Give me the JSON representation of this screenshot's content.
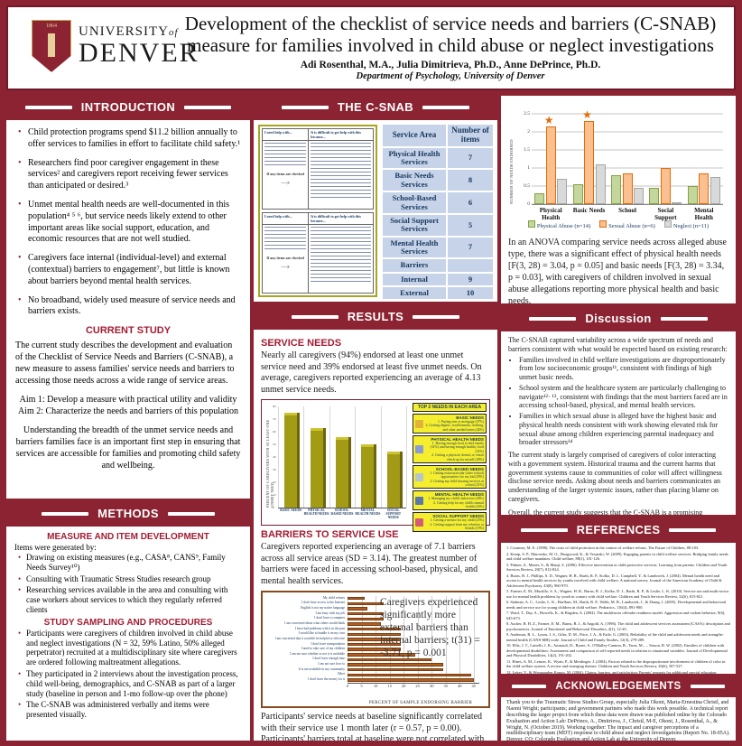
{
  "header": {
    "university_line": "UNIVERSITY",
    "university_of": "of",
    "university_name": "DENVER",
    "shield_year": "1864",
    "title_line1": "Development of the checklist of service needs and barriers (C-SNAB)",
    "title_line2": "measure for families involved in child abuse or neglect investigations",
    "authors": "Adi Rosenthal, M.A., Julia Dimitrieva, Ph.D., Anne DePrince, Ph.D.",
    "department": "Department of Psychology, University of Denver"
  },
  "intro": {
    "title": "INTRODUCTION",
    "bullets": [
      "Child protection programs spend $11.2 billion annually to offer services to families in effort to facilitate child safety.¹",
      "Researchers find poor caregiver engagement in these services² and caregivers report receiving fewer services than anticipated or desired.³",
      "Unmet mental health needs are well-documented in this population⁴ ⁵ ⁶, but service needs likely extend to other important areas like social support, education, and economic resources that are not well studied.",
      "Caregivers face internal (individual-level) and external (contextual) barriers to engagement⁷, but little is known about barriers beyond mental health services.",
      "No broadband, widely used measure of service needs and barriers exists."
    ]
  },
  "current_study": {
    "title": "CURRENT STUDY",
    "para": "The current study describes the development and evaluation of the Checklist of Service Needs and Barriers (C-SNAB), a new measure to assess families' service needs and barriers to accessing those needs across a wide range of service areas.",
    "aim1": "Aim 1: Develop a measure with practical utility and validity",
    "aim2": "Aim 2: Characterize the needs and barriers of this population",
    "closing": "Understanding the breadth of the unmet service needs and barriers families face is an important first step in ensuring that services are accessible for families and promoting child safety and wellbeing."
  },
  "methods": {
    "title": "METHODS",
    "sub1": "MEASURE AND ITEM DEVELOPMENT",
    "lead": "Items were generated by:",
    "bullets1": [
      "Drawing on existing measures (e.g., CASA⁸, CANS⁹, Family Needs Survey¹⁰)",
      "Consulting with Traumatic Stress Studies research group",
      "Researching services available in the area and consulting with case workers about services to which they regularly referred clients"
    ],
    "sub2": "STUDY SAMPLING AND PROCEDURES",
    "bullets2": [
      "Participants were caregivers of children involved in child abuse and neglect investigations (N = 32, 59% Latino, 50% alleged perpetrator) recruited at a multidisciplinary site where caregivers are ordered following maltreatment allegations.",
      "They participated in 2 interviews about the investigation process, child well-being, demographics, and C-SNAB as part of a larger study (baseline in person and 1-mo follow-up over the phone)",
      "The C-SNAB was administered verbally and items were presented visually."
    ]
  },
  "csnab": {
    "title": "THE C-SNAB",
    "form": {
      "header_left": "I need help with...",
      "header_right": "It is difficult to get help with this because...",
      "note": "If any items are checked"
    },
    "table": {
      "col_area": "Service Area",
      "col_items": "Number of items",
      "rows": [
        {
          "area": "Physical Health Services",
          "items": "7"
        },
        {
          "area": "Basic Needs Services",
          "items": "8"
        },
        {
          "area": "School-Based Services",
          "items": "6"
        },
        {
          "area": "Social Support Services",
          "items": "5"
        },
        {
          "area": "Mental Health Services",
          "items": "7"
        },
        {
          "area": "Barriers",
          "items": ""
        },
        {
          "area": "Internal",
          "items": "9"
        },
        {
          "area": "External",
          "items": "10"
        }
      ]
    }
  },
  "results": {
    "title": "RESULTS",
    "service_needs_heading": "SERVICE NEEDS",
    "service_needs_text": "Nearly all caregivers (94%) endorsed at least one unmet service need and 39% endorsed at least five unmet needs. On average, caregivers reported experiencing an average of 4.13 unmet service needs.",
    "barriers_heading": "BARRIERS TO SERVICE USE",
    "barriers_text": "Caregivers reported experiencing an average of 7.1 barriers across all service areas (SD = 3.14). The greatest number of barriers were faced in accessing school-based, physical, and mental health services.",
    "ttest_note": "Caregivers experienced significantly more external barriers than internal barriers; t(31) = -3.71, p = 0.001",
    "correlation_text": "Participants' service needs at baseline significantly correlated with their service use 1 month later (r = 0.57, p = 0.00). Participants' barriers total at baseline were not correlated with service use at follow-up (r = 0.32, p = 0.09)."
  },
  "top2_legend": {
    "title": "TOP 2 NEEDS IN EACH AREA",
    "boxes": [
      {
        "name": "BASIC NEEDS",
        "line1": "1. Paying rent or mortgage (47%)",
        "line2": "2. Getting diapers, food/formula, clothing, and other needed items (44%)",
        "icon_color": "#e2b23a"
      },
      {
        "name": "PHYSICAL HEALTH NEEDS",
        "line1": "1. Having enough food to feed family (31%) and having enough healthy food (31%)",
        "line2": "2. Getting a physical, dental, or vision check-up for myself (28%)",
        "icon_color": "#8b9bd4"
      },
      {
        "name": "SCHOOL-BASED NEEDS",
        "line1": "1. Getting extracurricular (after school) opportunities for my kid (29%)",
        "line2": "2. Getting my child tutoring services at school (21%)",
        "icon_color": "#b8c4cc"
      },
      {
        "name": "MENTAL HEALTH NEEDS",
        "line1": "1. Managing my child's behaviors (28%)",
        "line2": "2. Getting help for my child's mental health (24%)",
        "icon_color": "#5b79a8"
      },
      {
        "name": "SOCIAL SUPPORT NEEDS",
        "line1": "1. Getting a mentor for my child (25%)",
        "line2": "2. Getting support from my relatives or friends (19%)",
        "icon_color": "#d45b74"
      }
    ]
  },
  "abuse_section": {
    "anova_text": "In an ANOVA comparing service needs across alleged abuse type, there was a significant effect of physical health needs [F(3, 28) = 3.04, p = 0.05] and basic needs [F(3, 28) = 3.34, p = 0.03], with caregivers of children involved in sexual abuse allegations reporting more physical health and basic needs."
  },
  "discussion": {
    "title": "Discussion",
    "intro": "The C-SNAB captured variability across a wide spectrum of needs and barriers consistent with what would be expected based on existing research:",
    "bullets": [
      "Families involved in child welfare investigations are disproportionately from low socioeconomic groups¹¹, consistent with findings of high unmet basic needs.",
      "School system and the healthcare system are particularly challenging to navigate¹²· ¹³, consistent with findings that the most barriers faced are in accessing school-based, physical, and mental health services.",
      "Families in which sexual abuse is alleged have the highest basic and physical health needs consistent with work showing elevated risk for sexual abuse among children experiencing parental inadequacy and broader stressors¹⁴"
    ],
    "para2": "The current study is largely comprised of caregivers of color interacting with a government system. Historical trauma and the current harms that government systems cause to communities of color will affect willingness disclose service needs.  Asking about needs and barriers communicates an understanding of the larger systemic issues, rather than placing blame on caregivers.",
    "para3": "Overall, the current study suggests that the C-SNAB is a promising assessment of caregiver service needs, barriers, and use."
  },
  "references": {
    "title": "REFERENCES",
    "items": [
      "1. Courtney, M. E. (1998). The costs of child protection in the context of welfare reform. The Future of Children, 88-103.",
      "2. Kemp, S. P., Marcenko, M. O., Hoagwood, K., & Vesneski, W. (2009). Engaging parents in child welfare services: Bridging family needs and child welfare mandates. Child welfare, 88(1), 101-126.",
      "3. Palmer, S., Maiter, S., & Manji, S. (2006). Effective intervention in child protective services: Learning from parents. Children and Youth Services Review, 28(7), 812-824.",
      "4. Burns, B. J., Phillips, S. D., Wagner, H. R., Barth, R. P., Kolko, D. J., Campbell, Y., & Landsverk, J. (2004). Mental health need and access to mental health services by youths involved with child welfare: A national survey. Journal of the American Academy of Child & Adolescent Psychiatry, 43(8), 960-970.",
      "5. Farmer, E. M., Mustillo, S. A., Wagner, H. R., Burns, B. J., Kolko, D. J., Barth, R. P., & Leslie, L. K. (2010). Service use and multi-sector use for mental health problems by youth in contact with child welfare. Children and Youth Services Review, 32(6), 815-821.",
      "6. Stahmer, A. C., Leslie, L. K., Hurlburt, M., Barth, R. P., Webb, M. B., Landsverk, J., & Zhang, J. (2005). Developmental and behavioral needs and service use for young children in child welfare. Pediatrics, 116(4), 891-900.",
      "7. Ward, T., Day, A., Howells, K., & Birgden, A. (2004). The multifactor offender readiness model. Aggression and violent behavior, 9(6), 645-673.",
      "8. Ascher, B. H. Z., Farmer, E. M., Burns, B. J., & Angold, A. (1996). The child and adolescent services assessment (CASA): description and psychometrics. Journal of Emotional and Behavioral Disorders, 4(1), 12-20.",
      "9. Anderson, R. L., Lyons, J. S., Giles, D. M., Price, J. A., & Estle, G. (2003). Reliability of the child and adolescent needs and strengths-mental health (CANS-MH) scale. Journal of Child and Family Studies, 12(3), 279-289.",
      "10. Ellis, J. T., Luiselli, J. K., Amirault, D., Byrne, S., O'Malley-Cannon, B., Taras, M., ... Sisson, R. W. (2002). Families of children with developmental disabilities: Assessment and comparison of self-reported needs in relation to situational variables. Journal of Developmental and Physical Disabilities, 14(2), 191-202.",
      "11. Hines, A. M., Lemon, K., Wyatt, P., & Merdinger, J. (2004). Factors related to the disproportionate involvement of children of color in the child welfare system: A review and emerging themes. Children and Youth Services Review, 26(6), 507-527.",
      "12. Leiter, V., & Wyngaarden Krauss, M. (2004). Claims, barriers, and satisfaction: Parents' requests for additional special education services. Journal of Disability Policy Studies, 15(3), 135-146.",
      "13. Cook, N. L., Hicks, L. S., O'Malley, A. J., Keegan, T., Guadagnoli, E., & Landon, B. E. (2007). Access to specialty care and medical services in community health centers. Health Affairs, 26(3), 1459-1468.",
      "14. Finkelhor, D., & Dziuba-Leatherman, J. (1994). Victimization of children. American Psychologist, 49(3), 173."
    ]
  },
  "acknowledgements": {
    "title": "ACKNOWLEDGEMENTS",
    "text": "Thank you to the Traumatic Stress Studies Group, especially Julia Okoni, Maria-Ernestina Christl, and Naomi Wright; participants; and government partners who made this work possible. A technical report describing the larger project from which these data were drawn was published online by the Colorado Evaluation and Action Lab: DePrince, A., Dmitrieva, J., Christl, M-E, Okoni, J., Rosenthal, A., & Wright, N. (October 2019). Working together: The impact and caregiver perceptions of a multidisciplinary team (MDT) response to child abuse and neglect investigations (Report No. 18-05A). Denver, CO: Colorado Evaluation and Action Lab at the University of Denver."
  },
  "colors": {
    "maroon": "#8b2332",
    "crimson_subhead": "#a21c33",
    "table_cell": "#c6d3e8",
    "table_text": "#17365d",
    "needs_bar": "#a39a15",
    "barrier_bar": "#b05f1e",
    "legend_yellow": "#f5ee2f",
    "star_orange": "#e36c0a"
  },
  "chart_data": [
    {
      "id": "needs_by_area",
      "type": "bar",
      "title": "",
      "xlabel": "",
      "ylabel": "PERCENT OF CAREGIVERS WITH AT LEAST ONE UNMET NEED",
      "categories": [
        "BASIC NEEDS",
        "PHYSICAL HEALTH NEEDS",
        "SCHOOL-BASED NEEDS",
        "MENTAL HEALTH NEEDS",
        "SOCIAL SUPPORT NEEDS"
      ],
      "values": [
        75,
        63,
        56,
        50,
        44
      ],
      "ylim": [
        0,
        80
      ],
      "ytick_step": 10,
      "grid": "vertical",
      "bar_color": "#a39a15"
    },
    {
      "id": "barriers_endorsed",
      "type": "bar-horizontal",
      "title": "",
      "xlabel": "PERCENT OF SAMPLE ENDORSING BARRIER",
      "ylabel": "",
      "categories": [
        "My child refuses",
        "I don't have access to the Internet",
        "English is not my native language",
        "I am busy with my job",
        "I don't have a computer",
        "I am concerned about what others would think",
        "I have had problems with it in the past",
        "I would like to handle it on my own",
        "I am concerned that it wouldn't be helpful or effective",
        "I don't have transportation",
        "I need to take care of my children",
        "I am not sure whether or not it is available",
        "I don't have enough time",
        "I am not sure how to",
        "It is not available in my community",
        "Other",
        "I don't have the money for it"
      ],
      "values": [
        6,
        13,
        7,
        13,
        13,
        12,
        19,
        19,
        19,
        19,
        19,
        24,
        30,
        34,
        34,
        44,
        45
      ],
      "xlim": [
        0,
        45
      ],
      "xtick_step": 5,
      "grid": "vertical",
      "bar_color": "#b05f1e"
    },
    {
      "id": "needs_by_abuse_type",
      "type": "grouped-bar",
      "title": "",
      "xlabel": "",
      "ylabel": "NUMBER OF NEEDS ENDORSED",
      "categories": [
        "Physical Health",
        "Basic Needs",
        "School",
        "Social Support",
        "Mental Health"
      ],
      "series": [
        {
          "name": "Physical Abuse (n=14)",
          "color": "#c3d69b",
          "border": "#89a048",
          "values": [
            0.3,
            0.55,
            0.8,
            0.45,
            0.5
          ]
        },
        {
          "name": "Sexual Abuse (n=6)",
          "color": "#fac090",
          "border": "#e36c0a",
          "values": [
            2.15,
            2.3,
            0.85,
            1.0,
            0.85
          ]
        },
        {
          "name": "Neglect (n=11)",
          "color": "#d9d9d9",
          "border": "#a6a6a6",
          "values": [
            0.7,
            1.1,
            0.45,
            0.05,
            0.75
          ]
        }
      ],
      "ylim": [
        0,
        2.5
      ],
      "ytick_step": 0.5,
      "grid": "horizontal",
      "legend_position": "bottom",
      "star_categories": [
        0,
        1
      ],
      "star_series": 1
    }
  ]
}
